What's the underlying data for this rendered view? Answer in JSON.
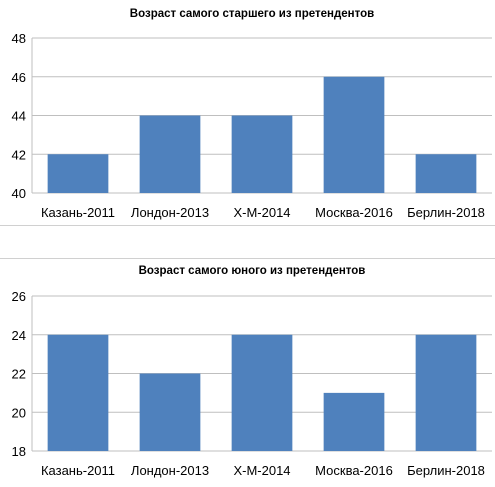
{
  "chart_data": [
    {
      "type": "bar",
      "title": "Возраст самого старшего из претендентов",
      "categories": [
        "Казань-2011",
        "Лондон-2013",
        "Х-М-2014",
        "Москва-2016",
        "Берлин-2018"
      ],
      "values": [
        42,
        44,
        44,
        46,
        42
      ],
      "ylim": [
        40,
        48
      ],
      "yticks": [
        40,
        42,
        44,
        46,
        48
      ],
      "grid": true,
      "bar_color": "#4f81bd"
    },
    {
      "type": "bar",
      "title": "Возраст самого юного из претендентов",
      "categories": [
        "Казань-2011",
        "Лондон-2013",
        "Х-М-2014",
        "Москва-2016",
        "Берлин-2018"
      ],
      "values": [
        24,
        22,
        24,
        21,
        24
      ],
      "ylim": [
        18,
        26
      ],
      "yticks": [
        18,
        20,
        22,
        24,
        26
      ],
      "grid": true,
      "bar_color": "#4f81bd"
    }
  ]
}
